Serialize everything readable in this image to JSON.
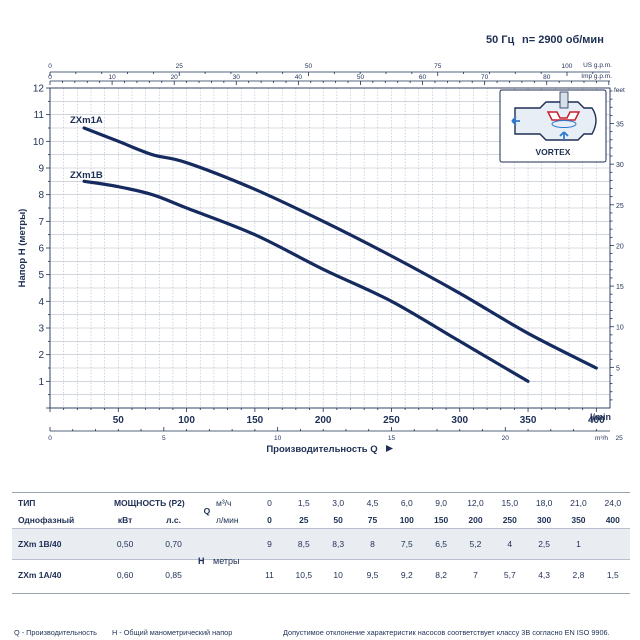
{
  "header": {
    "freq": "50 Гц",
    "speed": "n= 2900 об/мин"
  },
  "chart_data": {
    "type": "line",
    "xlabel": "Производительность Q",
    "ylabel": "Напор H (метры)",
    "xlim": [
      0,
      410
    ],
    "ylim": [
      0,
      12
    ],
    "x_ticks": [
      50,
      100,
      150,
      200,
      250,
      300,
      350,
      400
    ],
    "x_unit": "l/min",
    "y_ticks": [
      1,
      2,
      3,
      4,
      5,
      6,
      7,
      8,
      9,
      10,
      11,
      12
    ],
    "y2_ticks": [
      5,
      10,
      15,
      20,
      25,
      30,
      35
    ],
    "y2_unit": "feet",
    "top_axes": [
      {
        "unit": "US g.p.m.",
        "ticks": [
          0,
          25,
          50,
          75,
          100
        ]
      },
      {
        "unit": "Imp g.p.m.",
        "ticks": [
          0,
          10,
          20,
          30,
          40,
          50,
          60,
          70,
          80
        ]
      }
    ],
    "bottom_axis2": {
      "unit": "m³/h",
      "ticks": [
        0,
        5,
        10,
        15,
        20,
        25
      ]
    },
    "series": [
      {
        "name": "ZXm1A",
        "x": [
          25,
          50,
          75,
          100,
          150,
          200,
          250,
          300,
          350,
          400
        ],
        "y": [
          10.5,
          10,
          9.5,
          9.2,
          8.2,
          7,
          5.7,
          4.3,
          2.8,
          1.5
        ]
      },
      {
        "name": "ZXm1B",
        "x": [
          25,
          50,
          75,
          100,
          150,
          200,
          250,
          300,
          350
        ],
        "y": [
          8.5,
          8.3,
          8,
          7.5,
          6.5,
          5.2,
          4,
          2.5,
          1
        ]
      }
    ],
    "inset": {
      "label": "VORTEX"
    }
  },
  "table": {
    "type_label": "ТИП",
    "phase_label": "Однофазный",
    "power_label": "МОЩНОСТЬ (P2)",
    "kw_label": "кВт",
    "hp_label": "л.с.",
    "q_label": "Q",
    "q_unit_m3h": "м³/ч",
    "q_unit_lmin": "л/мин",
    "h_label": "H",
    "h_unit": "метры",
    "q_m3h": [
      "0",
      "1,5",
      "3,0",
      "4,5",
      "6,0",
      "9,0",
      "12,0",
      "15,0",
      "18,0",
      "21,0",
      "24,0"
    ],
    "q_lmin": [
      "0",
      "25",
      "50",
      "75",
      "100",
      "150",
      "200",
      "250",
      "300",
      "350",
      "400"
    ],
    "rows": [
      {
        "model": "ZXm 1B/40",
        "kw": "0,50",
        "hp": "0,70",
        "h": [
          "9",
          "8,5",
          "8,3",
          "8",
          "7,5",
          "6,5",
          "5,2",
          "4",
          "2,5",
          "1",
          ""
        ]
      },
      {
        "model": "ZXm 1A/40",
        "kw": "0,60",
        "hp": "0,85",
        "h": [
          "11",
          "10,5",
          "10",
          "9,5",
          "9,2",
          "8,2",
          "7",
          "5,7",
          "4,3",
          "2,8",
          "1,5"
        ]
      }
    ]
  },
  "footnotes": {
    "q_note": "Q - Производительность",
    "h_note": "H - Общий манометрический напор",
    "tolerance": "Допустимое отклонение характеристик насосов соответствует классу 3B согласно EN ISO 9906."
  }
}
